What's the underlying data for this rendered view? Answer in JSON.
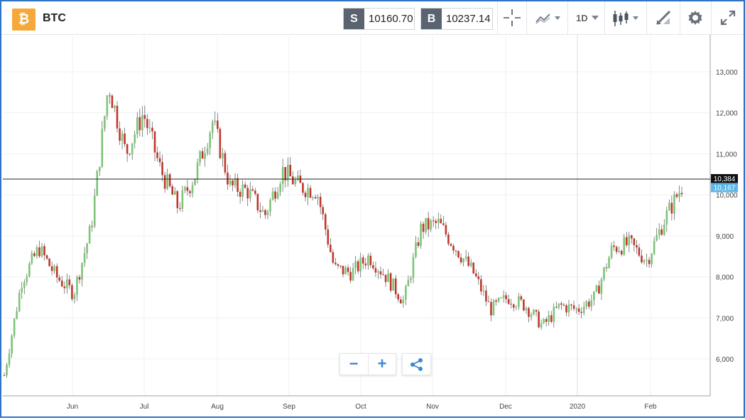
{
  "header": {
    "logo_glyph": "₿",
    "symbol": "BTC",
    "sell": {
      "tag": "S",
      "price": "10160.70"
    },
    "buy": {
      "tag": "B",
      "price": "10237.14"
    },
    "toolbar": [
      {
        "name": "crosshair-icon"
      },
      {
        "name": "indicators-icon"
      },
      {
        "name": "timeframe-button",
        "label": "1D"
      },
      {
        "name": "candle-type-icon"
      },
      {
        "name": "drawing-tool-icon"
      },
      {
        "name": "gear-icon"
      },
      {
        "name": "fullscreen-icon"
      }
    ]
  },
  "colors": {
    "up": "#7cc576",
    "down": "#c0362b",
    "accent": "#3c87d1",
    "current_label": "#5bb6ea"
  },
  "chart_data": {
    "type": "candlestick",
    "x_ticks": [
      "Jun",
      "Jul",
      "Aug",
      "Sep",
      "Oct",
      "Nov",
      "Dec",
      "2020",
      "Feb"
    ],
    "y_ticks": [
      "6,000",
      "7,000",
      "8,000",
      "9,000",
      "10,000",
      "11,000",
      "12,000",
      "13,000"
    ],
    "ylim": [
      5100,
      13900
    ],
    "grid": true,
    "crosshair_value": "10,384",
    "current_price_label": "10,167",
    "series": [
      {
        "date": "2019-05-13",
        "close": 5600
      },
      {
        "date": "2019-05-20",
        "close": 7900
      },
      {
        "date": "2019-05-27",
        "close": 8700
      },
      {
        "date": "2019-06-03",
        "close": 8000
      },
      {
        "date": "2019-06-10",
        "close": 7600
      },
      {
        "date": "2019-06-17",
        "close": 9200
      },
      {
        "date": "2019-06-24",
        "close": 12700
      },
      {
        "date": "2019-07-01",
        "close": 11000
      },
      {
        "date": "2019-07-08",
        "close": 12000
      },
      {
        "date": "2019-07-15",
        "close": 10600
      },
      {
        "date": "2019-07-22",
        "close": 9700
      },
      {
        "date": "2019-07-29",
        "close": 10500
      },
      {
        "date": "2019-08-05",
        "close": 11800
      },
      {
        "date": "2019-08-12",
        "close": 10200
      },
      {
        "date": "2019-08-19",
        "close": 10100
      },
      {
        "date": "2019-08-26",
        "close": 9500
      },
      {
        "date": "2019-09-02",
        "close": 10600
      },
      {
        "date": "2019-09-09",
        "close": 10200
      },
      {
        "date": "2019-09-16",
        "close": 10100
      },
      {
        "date": "2019-09-23",
        "close": 8200
      },
      {
        "date": "2019-09-30",
        "close": 8100
      },
      {
        "date": "2019-10-07",
        "close": 8500
      },
      {
        "date": "2019-10-14",
        "close": 8000
      },
      {
        "date": "2019-10-21",
        "close": 7400
      },
      {
        "date": "2019-10-28",
        "close": 9200
      },
      {
        "date": "2019-11-04",
        "close": 9300
      },
      {
        "date": "2019-11-11",
        "close": 8700
      },
      {
        "date": "2019-11-18",
        "close": 8100
      },
      {
        "date": "2019-11-25",
        "close": 7200
      },
      {
        "date": "2019-12-02",
        "close": 7500
      },
      {
        "date": "2019-12-09",
        "close": 7300
      },
      {
        "date": "2019-12-16",
        "close": 6800
      },
      {
        "date": "2019-12-23",
        "close": 7300
      },
      {
        "date": "2019-12-30",
        "close": 7200
      },
      {
        "date": "2020-01-06",
        "close": 7500
      },
      {
        "date": "2020-01-13",
        "close": 8700
      },
      {
        "date": "2020-01-20",
        "close": 8800
      },
      {
        "date": "2020-01-27",
        "close": 8400
      },
      {
        "date": "2020-02-03",
        "close": 9400
      },
      {
        "date": "2020-02-10",
        "close": 10200
      }
    ]
  },
  "bottom": {
    "zoom_out": "−",
    "zoom_in": "+"
  }
}
